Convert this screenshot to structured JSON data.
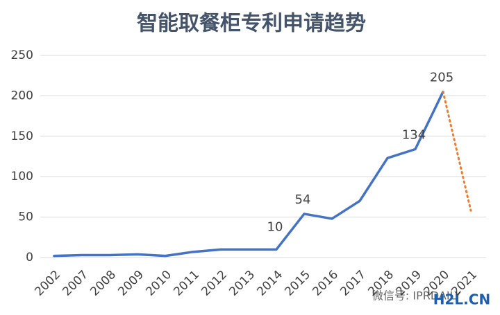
{
  "chart_data": {
    "type": "line",
    "title": "智能取餐柜专利申请趋势",
    "categories": [
      "2002",
      "2007",
      "2008",
      "2009",
      "2010",
      "2011",
      "2012",
      "2013",
      "2014",
      "2015",
      "2016",
      "2017",
      "2018",
      "2019",
      "2020",
      "2021"
    ],
    "series": [
      {
        "color": "#4472c4",
        "values": [
          2,
          3,
          3,
          4,
          2,
          7,
          10,
          10,
          10,
          54,
          48,
          70,
          123,
          134,
          205,
          null
        ]
      },
      {
        "color": "#ed7d31",
        "dashed": true,
        "values": [
          null,
          null,
          null,
          null,
          null,
          null,
          null,
          null,
          null,
          null,
          null,
          null,
          null,
          null,
          205,
          58
        ]
      }
    ],
    "labeled_points": [
      8,
      9,
      13,
      14
    ],
    "ylim": [
      0,
      250
    ],
    "yticks": [
      0,
      50,
      100,
      150,
      200,
      250
    ],
    "grid": true,
    "watermark": "微信号: IPRDAILY",
    "logo": "H2L.CN"
  }
}
